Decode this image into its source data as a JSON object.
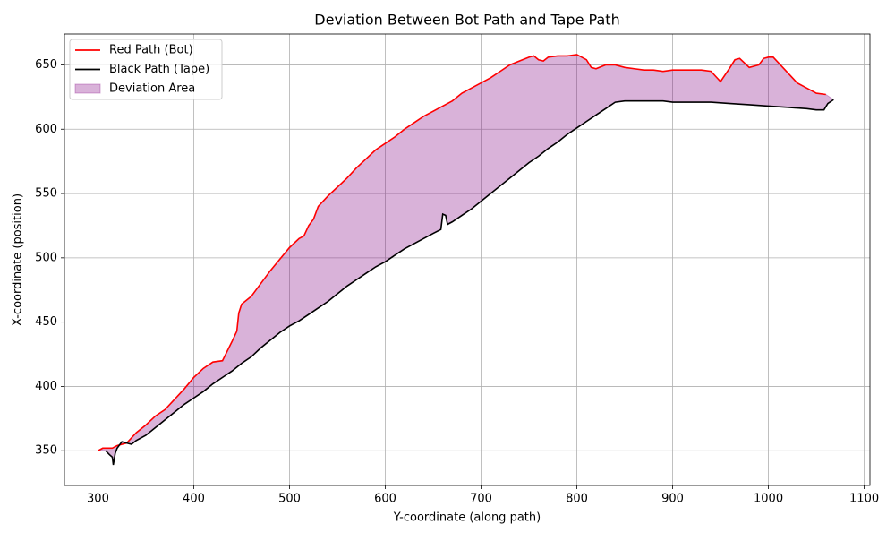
{
  "chart_data": {
    "type": "line",
    "title": "Deviation Between Bot Path and Tape Path",
    "xlabel": "Y-coordinate (along path)",
    "ylabel": "X-coordinate (position)",
    "xlim": [
      265,
      1106
    ],
    "ylim": [
      323,
      674
    ],
    "xticks": [
      300,
      400,
      500,
      600,
      700,
      800,
      900,
      1000,
      1100
    ],
    "yticks": [
      350,
      400,
      450,
      500,
      550,
      600,
      650
    ],
    "grid": true,
    "legend": "upper left",
    "series": [
      {
        "name": "Red Path (Bot)",
        "color": "#ff0000",
        "x": [
          300,
          305,
          315,
          320,
          330,
          340,
          350,
          360,
          370,
          380,
          390,
          400,
          410,
          420,
          430,
          440,
          445,
          447,
          450,
          460,
          470,
          480,
          490,
          500,
          510,
          515,
          520,
          525,
          530,
          540,
          550,
          560,
          570,
          580,
          590,
          600,
          610,
          620,
          630,
          640,
          650,
          660,
          670,
          680,
          690,
          700,
          710,
          720,
          730,
          740,
          750,
          755,
          760,
          765,
          770,
          780,
          790,
          800,
          810,
          815,
          820,
          830,
          840,
          850,
          860,
          870,
          880,
          890,
          900,
          910,
          920,
          930,
          940,
          950,
          960,
          965,
          970,
          980,
          990,
          995,
          1000,
          1005,
          1010,
          1020,
          1030,
          1040,
          1050,
          1060
        ],
        "values": [
          350,
          352,
          352,
          354,
          356,
          364,
          370,
          377,
          382,
          390,
          398,
          407,
          414,
          419,
          420,
          435,
          443,
          457,
          464,
          470,
          480,
          490,
          499,
          508,
          515,
          517,
          525,
          530,
          540,
          548,
          555,
          562,
          570,
          577,
          584,
          589,
          594,
          600,
          605,
          610,
          614,
          618,
          622,
          628,
          632,
          636,
          640,
          645,
          650,
          653,
          656,
          657,
          654,
          653,
          656,
          657,
          657,
          658,
          654,
          648,
          647,
          650,
          650,
          648,
          647,
          646,
          646,
          645,
          646,
          646,
          646,
          646,
          645,
          637,
          648,
          654,
          655,
          648,
          650,
          655,
          656,
          656,
          652,
          644,
          636,
          632,
          628,
          627
        ]
      },
      {
        "name": "Black Path (Tape)",
        "color": "#000000",
        "x": [
          308,
          312,
          315,
          316,
          318,
          320,
          325,
          330,
          335,
          340,
          350,
          360,
          370,
          380,
          390,
          400,
          410,
          420,
          430,
          440,
          450,
          460,
          470,
          480,
          490,
          500,
          510,
          520,
          530,
          540,
          550,
          560,
          570,
          580,
          590,
          600,
          610,
          620,
          630,
          640,
          650,
          658,
          660,
          663,
          665,
          670,
          680,
          690,
          700,
          710,
          720,
          730,
          740,
          750,
          760,
          770,
          780,
          790,
          800,
          810,
          820,
          830,
          840,
          850,
          870,
          890,
          900,
          940,
          960,
          980,
          1000,
          1020,
          1040,
          1050,
          1058,
          1062,
          1068
        ],
        "values": [
          350,
          347,
          345,
          339,
          348,
          352,
          357,
          356,
          355,
          358,
          362,
          368,
          374,
          380,
          386,
          391,
          396,
          402,
          407,
          412,
          418,
          423,
          430,
          436,
          442,
          447,
          451,
          456,
          461,
          466,
          472,
          478,
          483,
          488,
          493,
          497,
          502,
          507,
          511,
          515,
          519,
          522,
          534,
          533,
          526,
          528,
          533,
          538,
          544,
          550,
          556,
          562,
          568,
          574,
          579,
          585,
          590,
          596,
          601,
          606,
          611,
          616,
          621,
          622,
          622,
          622,
          621,
          621,
          620,
          619,
          618,
          617,
          616,
          615,
          615,
          620,
          623
        ]
      },
      {
        "name": "Deviation Area",
        "color": "#800080"
      }
    ]
  }
}
